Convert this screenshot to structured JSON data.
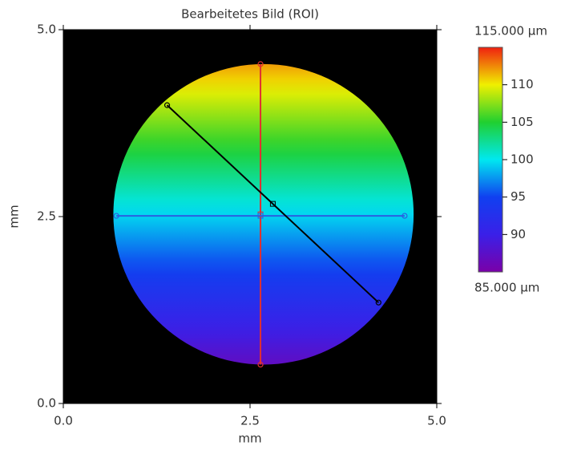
{
  "chart_data": {
    "type": "surface",
    "title": "Bearbeitetes Bild (ROI)",
    "x_label": "mm",
    "y_label": "mm",
    "xlim": [
      0,
      5
    ],
    "ylim": [
      0,
      5
    ],
    "xticks": [
      {
        "value": 0,
        "label": "0.0"
      },
      {
        "value": 2.5,
        "label": "2.5"
      },
      {
        "value": 5,
        "label": "5.0"
      }
    ],
    "yticks": [
      {
        "value": 0,
        "label": "0.0"
      },
      {
        "value": 2.5,
        "label": "2.5"
      },
      {
        "value": 5,
        "label": "5.0"
      }
    ],
    "background": "#000000",
    "roi": {
      "center": [
        2.68,
        2.53
      ],
      "radius": 2.01
    },
    "surface": {
      "y": [
        0.52,
        4.54
      ],
      "values": [
        87,
        112
      ]
    },
    "profile_lines": [
      {
        "color": "#e03030",
        "x": [
          2.64,
          2.64
        ],
        "y": [
          0.52,
          4.54
        ]
      },
      {
        "color": "#2a60e0",
        "x": [
          0.71,
          4.57
        ],
        "y": [
          2.51,
          2.51
        ]
      },
      {
        "color": "#000000",
        "x": [
          1.39,
          4.22
        ],
        "y": [
          3.99,
          1.35
        ]
      }
    ],
    "colormap": [
      "#7a00a8",
      "#3a20e8",
      "#1040f0",
      "#00e8f0",
      "#20d030",
      "#f0f000",
      "#f02010"
    ],
    "colorbar": {
      "lim": [
        85,
        115
      ],
      "ticks": [
        {
          "value": 115,
          "label": "115.000 µm"
        },
        110,
        105,
        100,
        95,
        90,
        {
          "value": 85,
          "label": "85.000 µm"
        }
      ]
    }
  }
}
